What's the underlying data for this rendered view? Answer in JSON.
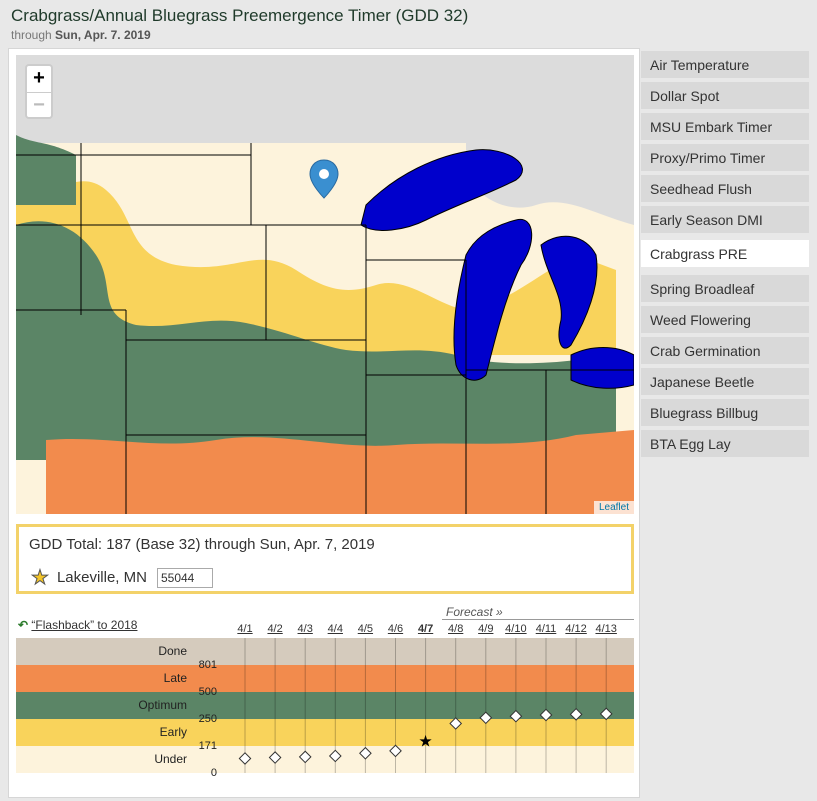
{
  "header": {
    "title": "Crabgrass/Annual Bluegrass Preemergence Timer (GDD 32)",
    "through_prefix": "through",
    "through_date": "Sun, Apr. 7. 2019"
  },
  "map": {
    "zoom_in": "+",
    "zoom_out": "−",
    "attribution": "Leaflet",
    "colors": {
      "done": "#d5cbbd",
      "late": "#f28b4d",
      "optimum": "#5b8566",
      "early": "#f9d35b",
      "under": "#fdf3dc",
      "lake": "#0000cc"
    }
  },
  "info": {
    "gdd_total": "GDD Total: 187 (Base 32) through Sun, Apr. 7, 2019",
    "location": "Lakeville, MN",
    "zip": "55044"
  },
  "chart": {
    "flashback_link": "“Flashback” to 2018",
    "forecast_label": "Forecast »",
    "days": [
      "4/1",
      "4/2",
      "4/3",
      "4/4",
      "4/5",
      "4/6",
      "4/7",
      "4/8",
      "4/9",
      "4/10",
      "4/11",
      "4/12",
      "4/13"
    ],
    "current_day": "4/7",
    "bands": [
      {
        "label": "Done",
        "color": "#d5cbbd"
      },
      {
        "label": "Late",
        "color": "#f28b4d"
      },
      {
        "label": "Optimum",
        "color": "#5b8566"
      },
      {
        "label": "Early",
        "color": "#f9d35b"
      },
      {
        "label": "Under",
        "color": "#fdf3dc"
      }
    ],
    "thresholds": [
      "801",
      "500",
      "250",
      "171",
      "0"
    ],
    "gdd_values": [
      92,
      98,
      102,
      108,
      125,
      140,
      187,
      237,
      261,
      276,
      287,
      293,
      297
    ]
  },
  "sidebar": {
    "items": [
      {
        "label": "Air Temperature",
        "active": false
      },
      {
        "label": "Dollar Spot",
        "active": false
      },
      {
        "label": "MSU Embark Timer",
        "active": false
      },
      {
        "label": "Proxy/Primo Timer",
        "active": false
      },
      {
        "label": "Seedhead Flush",
        "active": false
      },
      {
        "label": "Early Season DMI",
        "active": false
      },
      {
        "label": "Crabgrass PRE",
        "active": true
      },
      {
        "label": "Spring Broadleaf",
        "active": false
      },
      {
        "label": "Weed Flowering",
        "active": false
      },
      {
        "label": "Crab Germination",
        "active": false
      },
      {
        "label": "Japanese Beetle",
        "active": false
      },
      {
        "label": "Bluegrass Billbug",
        "active": false
      },
      {
        "label": "BTA Egg Lay",
        "active": false
      }
    ]
  }
}
